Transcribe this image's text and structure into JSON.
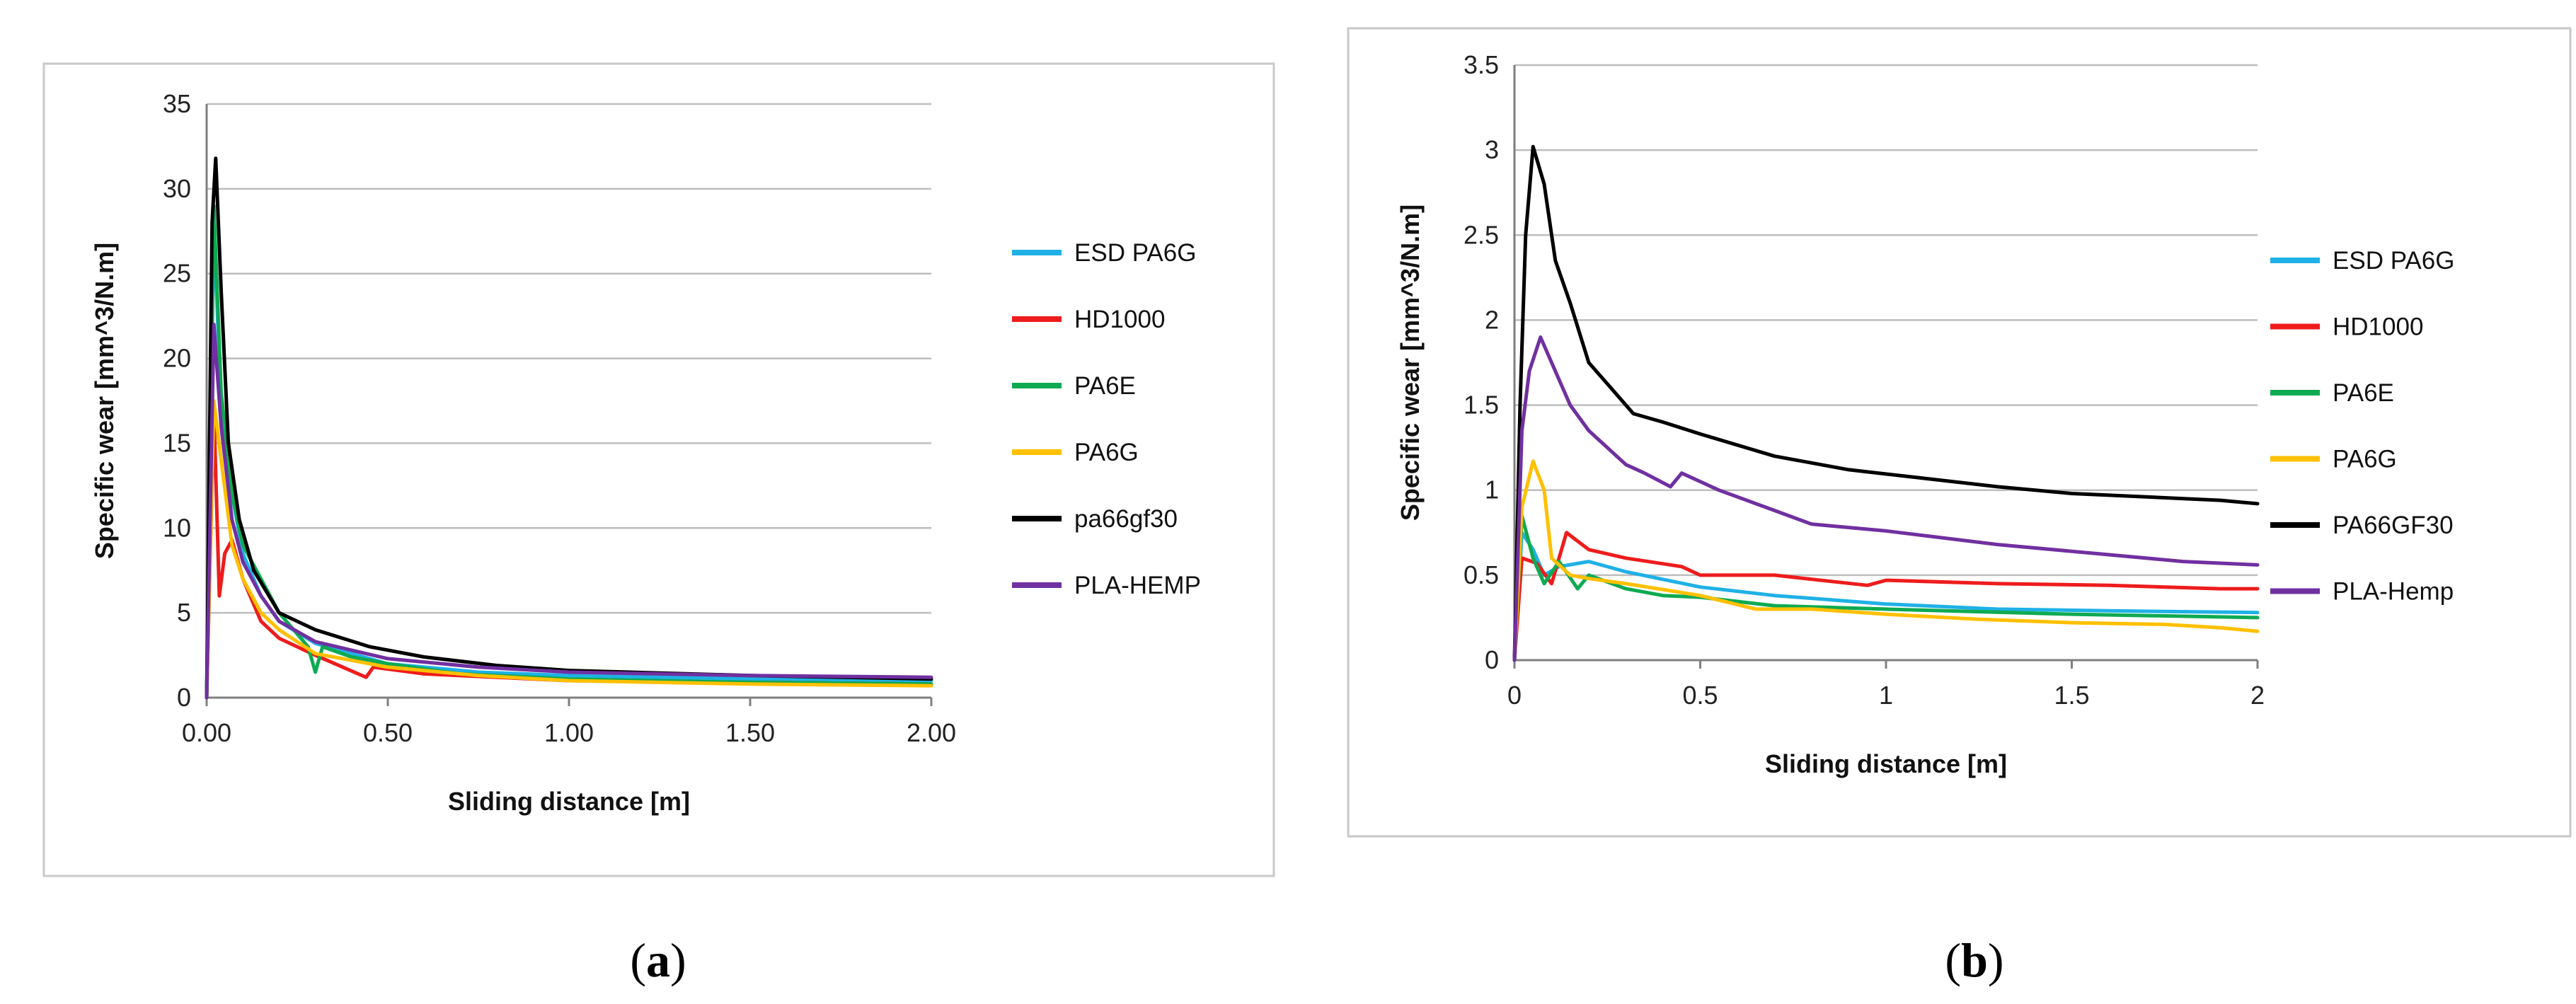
{
  "chart_data": [
    {
      "type": "line",
      "panel_label": "a",
      "xlabel": "Sliding distance [m]",
      "ylabel": "Specific wear [mm^3/N.m]",
      "xlim": [
        0,
        2
      ],
      "ylim": [
        0,
        35
      ],
      "xticks": [
        0,
        0.5,
        1.0,
        1.5,
        2.0
      ],
      "xtick_labels": [
        "0.00",
        "0.50",
        "1.00",
        "1.50",
        "2.00"
      ],
      "yticks": [
        0,
        5,
        10,
        15,
        20,
        25,
        30,
        35
      ],
      "ytick_labels": [
        "0",
        "5",
        "10",
        "15",
        "20",
        "25",
        "30",
        "35"
      ],
      "grid": true,
      "legend_position": "right",
      "series": [
        {
          "name": "ESD PA6G",
          "color": "#1fb1e6",
          "x": [
            0,
            0.02,
            0.04,
            0.07,
            0.1,
            0.15,
            0.2,
            0.3,
            0.5,
            0.75,
            1.0,
            1.5,
            2.0
          ],
          "y": [
            0,
            28,
            17,
            12,
            8.5,
            6,
            4.5,
            3.2,
            2.0,
            1.5,
            1.3,
            1.1,
            1.0
          ]
        },
        {
          "name": "HD1000",
          "color": "#ee1c1c",
          "x": [
            0,
            0.02,
            0.035,
            0.05,
            0.07,
            0.1,
            0.15,
            0.2,
            0.3,
            0.44,
            0.46,
            0.6,
            1.0,
            1.5,
            2.0
          ],
          "y": [
            0,
            17,
            6,
            8.5,
            9.3,
            7,
            4.5,
            3.5,
            2.5,
            1.2,
            1.8,
            1.4,
            1.0,
            0.9,
            0.8
          ]
        },
        {
          "name": "PA6E",
          "color": "#0eaa52",
          "x": [
            0,
            0.02,
            0.04,
            0.07,
            0.1,
            0.15,
            0.2,
            0.28,
            0.3,
            0.32,
            0.4,
            0.5,
            0.7,
            1.0,
            1.5,
            2.0
          ],
          "y": [
            0,
            29,
            18,
            12,
            9,
            7,
            5,
            3,
            1.5,
            3,
            2.4,
            2.0,
            1.4,
            1.1,
            0.9,
            0.8
          ]
        },
        {
          "name": "PA6G",
          "color": "#ffc000",
          "x": [
            0,
            0.02,
            0.04,
            0.07,
            0.1,
            0.15,
            0.2,
            0.3,
            0.5,
            0.75,
            1.0,
            1.5,
            2.0
          ],
          "y": [
            0,
            17.5,
            14,
            9,
            7,
            5,
            4,
            2.6,
            1.8,
            1.3,
            1.0,
            0.8,
            0.7
          ]
        },
        {
          "name": "pa66gf30",
          "color": "#000000",
          "x": [
            0,
            0.015,
            0.025,
            0.04,
            0.06,
            0.09,
            0.13,
            0.2,
            0.3,
            0.45,
            0.6,
            0.8,
            1.0,
            1.5,
            2.0
          ],
          "y": [
            0,
            28,
            31.8,
            24,
            15,
            10.5,
            7.5,
            5,
            4.0,
            3.0,
            2.4,
            1.9,
            1.6,
            1.3,
            1.1
          ]
        },
        {
          "name": "PLA-HEMP",
          "color": "#7030a0",
          "x": [
            0,
            0.02,
            0.04,
            0.07,
            0.1,
            0.15,
            0.2,
            0.3,
            0.5,
            0.75,
            1.0,
            1.5,
            2.0
          ],
          "y": [
            0,
            22,
            16,
            10.5,
            8,
            6,
            4.5,
            3.3,
            2.3,
            1.8,
            1.5,
            1.3,
            1.2
          ]
        }
      ]
    },
    {
      "type": "line",
      "panel_label": "b",
      "xlabel": "Sliding distance [m]",
      "ylabel": "Specific wear [mm^3/N.m]",
      "xlim": [
        0,
        2
      ],
      "ylim": [
        0,
        3.5
      ],
      "xticks": [
        0,
        0.5,
        1,
        1.5,
        2
      ],
      "xtick_labels": [
        "0",
        "0.5",
        "1",
        "1.5",
        "2"
      ],
      "yticks": [
        0,
        0.5,
        1,
        1.5,
        2,
        2.5,
        3,
        3.5
      ],
      "ytick_labels": [
        "0",
        "0.5",
        "1",
        "1.5",
        "2",
        "2.5",
        "3",
        "3.5"
      ],
      "grid": true,
      "legend_position": "right",
      "series": [
        {
          "name": "ESD PA6G",
          "color": "#1fb1e6",
          "x": [
            0,
            0.02,
            0.05,
            0.08,
            0.12,
            0.2,
            0.3,
            0.5,
            0.7,
            1.0,
            1.3,
            1.6,
            2.0
          ],
          "y": [
            0,
            0.75,
            0.65,
            0.5,
            0.55,
            0.58,
            0.52,
            0.43,
            0.38,
            0.33,
            0.3,
            0.29,
            0.28
          ]
        },
        {
          "name": "HD1000",
          "color": "#ee1c1c",
          "x": [
            0,
            0.02,
            0.06,
            0.1,
            0.14,
            0.2,
            0.3,
            0.45,
            0.5,
            0.7,
            0.95,
            1.0,
            1.3,
            1.6,
            1.9,
            2.0
          ],
          "y": [
            0,
            0.6,
            0.57,
            0.45,
            0.75,
            0.65,
            0.6,
            0.55,
            0.5,
            0.5,
            0.44,
            0.47,
            0.45,
            0.44,
            0.42,
            0.42
          ]
        },
        {
          "name": "PA6E",
          "color": "#0eaa52",
          "x": [
            0,
            0.02,
            0.05,
            0.08,
            0.12,
            0.17,
            0.2,
            0.3,
            0.4,
            0.5,
            0.7,
            1.0,
            1.5,
            2.0
          ],
          "y": [
            0,
            0.85,
            0.6,
            0.45,
            0.58,
            0.42,
            0.5,
            0.42,
            0.38,
            0.37,
            0.32,
            0.3,
            0.27,
            0.25
          ]
        },
        {
          "name": "PA6G",
          "color": "#ffc000",
          "x": [
            0,
            0.02,
            0.05,
            0.08,
            0.1,
            0.15,
            0.2,
            0.3,
            0.5,
            0.65,
            0.8,
            1.0,
            1.25,
            1.5,
            1.75,
            1.9,
            2.0
          ],
          "y": [
            0,
            0.9,
            1.17,
            1.0,
            0.6,
            0.5,
            0.48,
            0.45,
            0.38,
            0.3,
            0.3,
            0.27,
            0.24,
            0.22,
            0.21,
            0.19,
            0.17
          ]
        },
        {
          "name": "PA66GF30",
          "color": "#000000",
          "x": [
            0,
            0.015,
            0.03,
            0.05,
            0.08,
            0.11,
            0.15,
            0.2,
            0.26,
            0.32,
            0.4,
            0.5,
            0.7,
            0.9,
            1.1,
            1.3,
            1.5,
            1.7,
            1.9,
            2.0
          ],
          "y": [
            0,
            1.5,
            2.5,
            3.02,
            2.8,
            2.35,
            2.1,
            1.75,
            1.6,
            1.45,
            1.4,
            1.33,
            1.2,
            1.12,
            1.07,
            1.02,
            0.98,
            0.96,
            0.94,
            0.92
          ]
        },
        {
          "name": "PLA-Hemp",
          "color": "#7030a0",
          "x": [
            0,
            0.02,
            0.04,
            0.07,
            0.1,
            0.15,
            0.2,
            0.3,
            0.35,
            0.42,
            0.45,
            0.55,
            0.7,
            0.8,
            1.0,
            1.3,
            1.6,
            1.8,
            2.0
          ],
          "y": [
            0,
            1.35,
            1.7,
            1.9,
            1.75,
            1.5,
            1.35,
            1.15,
            1.1,
            1.02,
            1.1,
            1.0,
            0.88,
            0.8,
            0.76,
            0.68,
            0.62,
            0.58,
            0.56
          ]
        }
      ]
    }
  ]
}
